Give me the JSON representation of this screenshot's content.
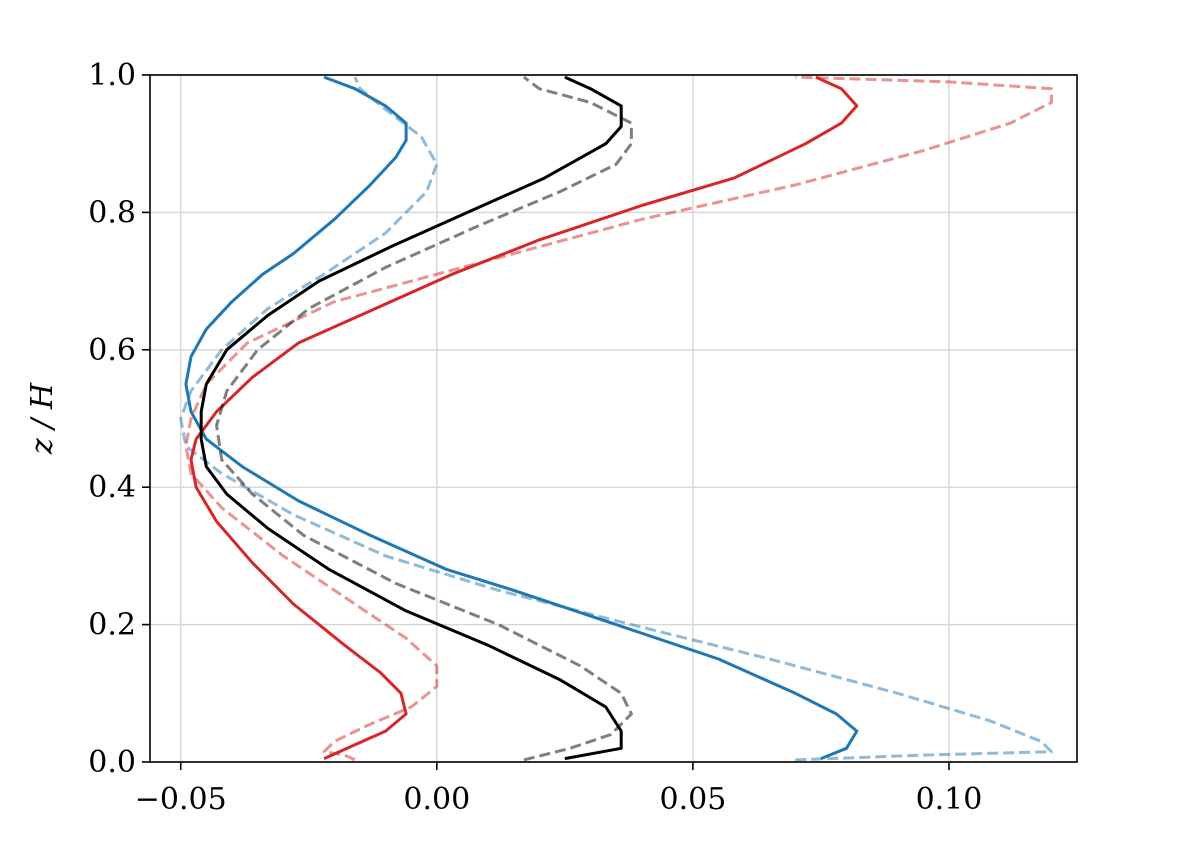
{
  "chart_data": {
    "type": "line",
    "title": "",
    "xlabel": "",
    "ylabel": "z / H",
    "xlim": [
      -0.056,
      0.125
    ],
    "ylim": [
      0.0,
      1.0
    ],
    "xticks": [
      -0.05,
      0.0,
      0.05,
      0.1
    ],
    "xtick_labels": [
      "−0.05",
      "0.00",
      "0.05",
      "0.10"
    ],
    "yticks": [
      0.0,
      0.2,
      0.4,
      0.6,
      0.8,
      1.0
    ],
    "ytick_labels": [
      "0.0",
      "0.2",
      "0.4",
      "0.6",
      "0.8",
      "1.0"
    ],
    "grid": true,
    "legend": "none",
    "series": [
      {
        "color": "#1f77b4",
        "style": "solid",
        "opacity": 1.0,
        "points": [
          [
            0.075,
            0.005
          ],
          [
            0.08,
            0.02
          ],
          [
            0.082,
            0.045
          ],
          [
            0.078,
            0.07
          ],
          [
            0.07,
            0.1
          ],
          [
            0.055,
            0.15
          ],
          [
            0.035,
            0.2
          ],
          [
            0.015,
            0.25
          ],
          [
            0.002,
            0.28
          ],
          [
            -0.013,
            0.33
          ],
          [
            -0.027,
            0.38
          ],
          [
            -0.038,
            0.43
          ],
          [
            -0.045,
            0.47
          ],
          [
            -0.048,
            0.51
          ],
          [
            -0.049,
            0.55
          ],
          [
            -0.048,
            0.59
          ],
          [
            -0.045,
            0.63
          ],
          [
            -0.04,
            0.67
          ],
          [
            -0.034,
            0.71
          ],
          [
            -0.028,
            0.74
          ],
          [
            -0.02,
            0.79
          ],
          [
            -0.013,
            0.84
          ],
          [
            -0.008,
            0.88
          ],
          [
            -0.006,
            0.905
          ],
          [
            -0.006,
            0.93
          ],
          [
            -0.01,
            0.955
          ],
          [
            -0.016,
            0.98
          ],
          [
            -0.022,
            0.997
          ]
        ]
      },
      {
        "color": "#1f77b4",
        "style": "dashed",
        "opacity": 0.5,
        "points": [
          [
            0.07,
            0.003
          ],
          [
            0.095,
            0.01
          ],
          [
            0.12,
            0.015
          ],
          [
            0.118,
            0.03
          ],
          [
            0.108,
            0.06
          ],
          [
            0.09,
            0.1
          ],
          [
            0.065,
            0.15
          ],
          [
            0.038,
            0.2
          ],
          [
            0.012,
            0.25
          ],
          [
            -0.01,
            0.3
          ],
          [
            -0.028,
            0.36
          ],
          [
            -0.042,
            0.42
          ],
          [
            -0.049,
            0.46
          ],
          [
            -0.05,
            0.5
          ],
          [
            -0.048,
            0.54
          ],
          [
            -0.042,
            0.6
          ],
          [
            -0.033,
            0.66
          ],
          [
            -0.022,
            0.71
          ],
          [
            -0.01,
            0.77
          ],
          [
            -0.002,
            0.83
          ],
          [
            0.0,
            0.87
          ],
          [
            -0.003,
            0.91
          ],
          [
            -0.01,
            0.95
          ],
          [
            -0.015,
            0.98
          ],
          [
            -0.016,
            0.997
          ]
        ]
      },
      {
        "color": "#d62728",
        "style": "solid",
        "opacity": 1.0,
        "points": [
          [
            -0.022,
            0.005
          ],
          [
            -0.016,
            0.025
          ],
          [
            -0.01,
            0.045
          ],
          [
            -0.006,
            0.07
          ],
          [
            -0.007,
            0.1
          ],
          [
            -0.011,
            0.13
          ],
          [
            -0.018,
            0.17
          ],
          [
            -0.028,
            0.23
          ],
          [
            -0.036,
            0.29
          ],
          [
            -0.043,
            0.35
          ],
          [
            -0.047,
            0.4
          ],
          [
            -0.048,
            0.44
          ],
          [
            -0.047,
            0.47
          ],
          [
            -0.043,
            0.51
          ],
          [
            -0.036,
            0.56
          ],
          [
            -0.027,
            0.61
          ],
          [
            -0.012,
            0.66
          ],
          [
            0.003,
            0.71
          ],
          [
            0.02,
            0.76
          ],
          [
            0.04,
            0.81
          ],
          [
            0.058,
            0.85
          ],
          [
            0.072,
            0.9
          ],
          [
            0.079,
            0.93
          ],
          [
            0.082,
            0.955
          ],
          [
            0.079,
            0.98
          ],
          [
            0.074,
            0.997
          ]
        ]
      },
      {
        "color": "#d62728",
        "style": "dashed",
        "opacity": 0.5,
        "points": [
          [
            -0.016,
            0.003
          ],
          [
            -0.018,
            0.01
          ],
          [
            -0.022,
            0.015
          ],
          [
            -0.02,
            0.03
          ],
          [
            -0.013,
            0.055
          ],
          [
            -0.005,
            0.08
          ],
          [
            0.0,
            0.11
          ],
          [
            0.0,
            0.14
          ],
          [
            -0.006,
            0.18
          ],
          [
            -0.016,
            0.23
          ],
          [
            -0.03,
            0.3
          ],
          [
            -0.042,
            0.37
          ],
          [
            -0.048,
            0.42
          ],
          [
            -0.049,
            0.46
          ],
          [
            -0.048,
            0.5
          ],
          [
            -0.045,
            0.55
          ],
          [
            -0.037,
            0.61
          ],
          [
            -0.02,
            0.67
          ],
          [
            0.01,
            0.73
          ],
          [
            0.04,
            0.79
          ],
          [
            0.07,
            0.84
          ],
          [
            0.095,
            0.89
          ],
          [
            0.112,
            0.93
          ],
          [
            0.12,
            0.96
          ],
          [
            0.12,
            0.98
          ],
          [
            0.1,
            0.99
          ],
          [
            0.07,
            0.997
          ]
        ]
      },
      {
        "color": "#000000",
        "style": "solid",
        "opacity": 1.0,
        "points": [
          [
            0.025,
            0.005
          ],
          [
            0.036,
            0.02
          ],
          [
            0.036,
            0.045
          ],
          [
            0.033,
            0.08
          ],
          [
            0.024,
            0.12
          ],
          [
            0.01,
            0.17
          ],
          [
            -0.006,
            0.22
          ],
          [
            -0.021,
            0.28
          ],
          [
            -0.033,
            0.34
          ],
          [
            -0.041,
            0.39
          ],
          [
            -0.045,
            0.43
          ],
          [
            -0.046,
            0.47
          ],
          [
            -0.046,
            0.51
          ],
          [
            -0.045,
            0.55
          ],
          [
            -0.041,
            0.6
          ],
          [
            -0.033,
            0.65
          ],
          [
            -0.023,
            0.7
          ],
          [
            -0.009,
            0.75
          ],
          [
            0.006,
            0.8
          ],
          [
            0.021,
            0.85
          ],
          [
            0.033,
            0.9
          ],
          [
            0.036,
            0.925
          ],
          [
            0.036,
            0.955
          ],
          [
            0.03,
            0.98
          ],
          [
            0.025,
            0.997
          ]
        ]
      },
      {
        "color": "#000000",
        "style": "dashed",
        "opacity": 0.5,
        "points": [
          [
            0.017,
            0.003
          ],
          [
            0.026,
            0.02
          ],
          [
            0.034,
            0.04
          ],
          [
            0.038,
            0.07
          ],
          [
            0.036,
            0.1
          ],
          [
            0.028,
            0.14
          ],
          [
            0.012,
            0.2
          ],
          [
            -0.008,
            0.26
          ],
          [
            -0.026,
            0.33
          ],
          [
            -0.036,
            0.39
          ],
          [
            -0.042,
            0.44
          ],
          [
            -0.043,
            0.49
          ],
          [
            -0.041,
            0.54
          ],
          [
            -0.035,
            0.6
          ],
          [
            -0.025,
            0.66
          ],
          [
            -0.01,
            0.72
          ],
          [
            0.008,
            0.78
          ],
          [
            0.024,
            0.83
          ],
          [
            0.035,
            0.87
          ],
          [
            0.038,
            0.9
          ],
          [
            0.038,
            0.93
          ],
          [
            0.03,
            0.96
          ],
          [
            0.02,
            0.98
          ],
          [
            0.017,
            0.997
          ]
        ]
      }
    ]
  }
}
